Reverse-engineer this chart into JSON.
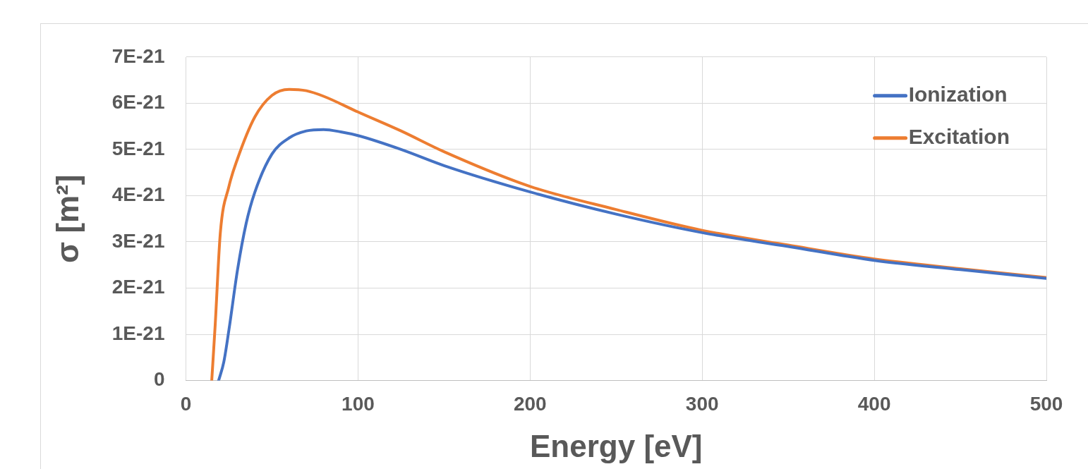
{
  "chart_data": {
    "type": "line",
    "xlabel": "Energy [eV]",
    "ylabel": "σ [m²]",
    "xlim": [
      0,
      500
    ],
    "xticks": [
      0,
      100,
      200,
      300,
      400,
      500
    ],
    "ylim": [
      0,
      7e-21
    ],
    "yticks": [
      {
        "value": 0,
        "label": "0"
      },
      {
        "value": 1e-21,
        "label": "1E-21"
      },
      {
        "value": 2e-21,
        "label": "2E-21"
      },
      {
        "value": 3e-21,
        "label": "3E-21"
      },
      {
        "value": 4e-21,
        "label": "4E-21"
      },
      {
        "value": 5e-21,
        "label": "5E-21"
      },
      {
        "value": 6e-21,
        "label": "6E-21"
      },
      {
        "value": 7e-21,
        "label": "7E-21"
      }
    ],
    "grid": true,
    "legend": "top right",
    "marker": "none",
    "line_style": "solid",
    "series": [
      {
        "name": "Ionization",
        "color": "#4472c4",
        "x": [
          19,
          22,
          25,
          30,
          35,
          40,
          50,
          60,
          70,
          80,
          90,
          100,
          125,
          150,
          200,
          250,
          300,
          350,
          400,
          450,
          500
        ],
        "values": [
          0,
          4e-22,
          1.1e-21,
          2.4e-21,
          3.4e-21,
          4.07e-21,
          4.9e-21,
          5.25e-21,
          5.4e-21,
          5.43e-21,
          5.38e-21,
          5.3e-21,
          5e-21,
          4.65e-21,
          4.08e-21,
          3.6e-21,
          3.2e-21,
          2.9e-21,
          2.6e-21,
          2.4e-21,
          2.21e-21
        ]
      },
      {
        "name": "Excitation",
        "color": "#ed7d31",
        "x": [
          15,
          17,
          20,
          25,
          30,
          40,
          50,
          60,
          70,
          80,
          100,
          125,
          150,
          200,
          250,
          300,
          350,
          400,
          450,
          500
        ],
        "values": [
          0,
          1.2e-21,
          3.2e-21,
          4.2e-21,
          4.8e-21,
          5.7e-21,
          6.17e-21,
          6.3e-21,
          6.27e-21,
          6.15e-21,
          5.81e-21,
          5.4e-21,
          4.95e-21,
          4.2e-21,
          3.7e-21,
          3.25e-21,
          2.93e-21,
          2.63e-21,
          2.42e-21,
          2.23e-21
        ]
      }
    ]
  }
}
